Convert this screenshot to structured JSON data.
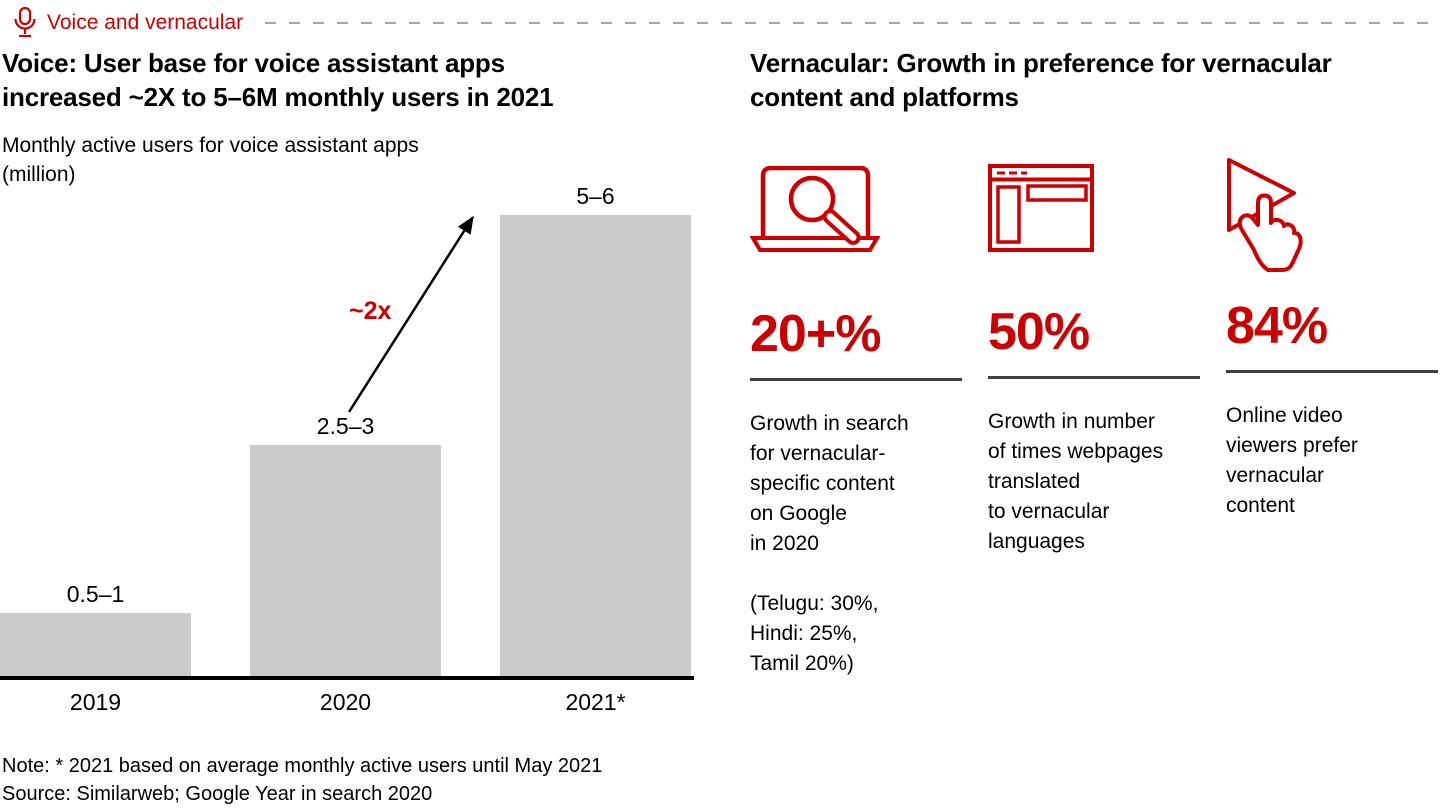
{
  "header": {
    "label": "Voice and vernacular"
  },
  "left_panel": {
    "title": "Voice: User base for voice assistant apps\nincreased ~2X to 5–6M monthly users in 2021",
    "subtitle": "Monthly active users for voice assistant apps\n(million)"
  },
  "right_panel": {
    "title": "Vernacular: Growth in preference for vernacular\ncontent and platforms",
    "stats": [
      {
        "icon": "laptop-search-icon",
        "value": "20+%",
        "description": "Growth in search\nfor vernacular-\nspecific content\non Google\nin 2020",
        "detail": "(Telugu: 30%,\nHindi: 25%,\nTamil 20%)"
      },
      {
        "icon": "browser-window-icon",
        "value": "50%",
        "description": "Growth in number\nof times webpages\ntranslated\nto vernacular\nlanguages",
        "detail": ""
      },
      {
        "icon": "video-tap-icon",
        "value": "84%",
        "description": "Online video\nviewers prefer\nvernacular\ncontent",
        "detail": ""
      }
    ]
  },
  "footer": {
    "note": "Note: * 2021 based on average monthly active users until May 2021",
    "source": "Source: Similarweb; Google Year in search 2020"
  },
  "colors": {
    "accent": "#cc0000",
    "bar": "#cbcbcb",
    "divider": "#3f3f3f",
    "dash": "#a6a6a6",
    "axis": "#000000"
  },
  "chart_data": {
    "type": "bar",
    "title": "Monthly active users for voice assistant apps (million)",
    "categories": [
      "2019",
      "2020",
      "2021*"
    ],
    "values": [
      0.75,
      2.75,
      5.5
    ],
    "value_labels": [
      "0.5–1",
      "2.5–3",
      "5–6"
    ],
    "annotation": "~2x",
    "xlabel": "",
    "ylabel": "Monthly active users (million)",
    "ylim": [
      0,
      6
    ],
    "grid": false,
    "legend": false,
    "bar_color": "#cbcbcb"
  }
}
